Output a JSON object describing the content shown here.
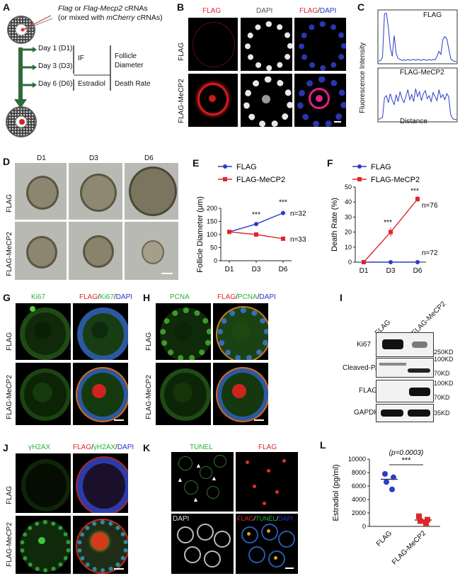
{
  "panels": {
    "A": "A",
    "B": "B",
    "C": "C",
    "D": "D",
    "E": "E",
    "F": "F",
    "G": "G",
    "H": "H",
    "I": "I",
    "J": "J",
    "K": "K",
    "L": "L"
  },
  "panelA": {
    "line1_a": "Flag",
    "line1_b": " or ",
    "line1_c": "Flag-Mecp2",
    "line1_d": " cRNAs",
    "line2_a": "(or mixed with ",
    "line2_b": "mCherry",
    "line2_c": " cRNAs)",
    "day1": "Day 1 (D1)",
    "day3": "Day 3 (D3)",
    "day6": "Day 6 (D6)",
    "if": "IF",
    "estradiol": "Estradiol",
    "follicle": "Follicle",
    "diameter": "Diameter",
    "death": "Death Rate"
  },
  "panelB": {
    "col1": "FLAG",
    "col2": "DAPI",
    "col3a": "FLAG",
    "col3b": "/",
    "col3c": "DAPI",
    "row1": "FLAG",
    "row2": "FLAG-MeCP2"
  },
  "panelC": {
    "ylabel": "Fluorescence Intensity",
    "xlabel": "Distance",
    "title1": "FLAG",
    "title2": "FLAG-MeCP2"
  },
  "panelD": {
    "cols": [
      "D1",
      "D3",
      "D6"
    ],
    "row1": "FLAG",
    "row2": "FLAG-MeCP2"
  },
  "panelG": {
    "col1": "Ki67",
    "col2a": "FLAG",
    "col2b": "/",
    "col2c": "Ki67",
    "col2d": "/",
    "col2e": "DAPI",
    "row1": "FLAG",
    "row2": "FLAG-MeCP2"
  },
  "panelH": {
    "col1": "PCNA",
    "col2a": "FLAG",
    "col2b": "/",
    "col2c": "PCNA",
    "col2d": "/",
    "col2e": "DAPI",
    "row1": "FLAG",
    "row2": "FLAG-MeCP2"
  },
  "panelI": {
    "col1": "FLAG",
    "col2": "FLAG-MeCP2",
    "rows": [
      "Ki67",
      "Cleaved-PARP",
      "FLAG",
      "GAPDH"
    ],
    "markers": [
      "250KD",
      "100KD",
      "70KD",
      "100KD",
      "70KD",
      "35KD"
    ]
  },
  "panelJ": {
    "col1": "γH2AX",
    "col2a": "FLAG",
    "col2b": "/",
    "col2c": "γH2AX",
    "col2d": "/",
    "col2e": "DAPI",
    "row1": "FLAG",
    "row2": "FLAG-MeCP2"
  },
  "panelK": {
    "tl": "TUNEL",
    "tr": "FLAG",
    "bl": "DAPI",
    "br_a": "FLAG",
    "br_b": "/",
    "br_c": "TUNEL",
    "br_d": "/",
    "br_e": "DAPI"
  },
  "colors": {
    "flag_series": "#2a3cc8",
    "mecp2_series": "#e0262a",
    "green": "#27b33a"
  },
  "chart_data": [
    {
      "type": "line",
      "panel": "C",
      "title": "FLAG",
      "ylabel": "Fluorescence Intensity",
      "xlabel": "Distance",
      "x": [
        0,
        1,
        2,
        3,
        4,
        5,
        6,
        7,
        8,
        9,
        10,
        11,
        12,
        13,
        14,
        15,
        16,
        17,
        18,
        19,
        20,
        21,
        22,
        23,
        24,
        25,
        26,
        27,
        28,
        29,
        30,
        31,
        32,
        33,
        34,
        35,
        36,
        37,
        38,
        39,
        40
      ],
      "values": [
        0.1,
        0.2,
        0.5,
        4.9,
        4.95,
        3.5,
        1.5,
        0.6,
        2.7,
        0.9,
        0.4,
        0.3,
        0.2,
        0.25,
        0.2,
        0.3,
        0.2,
        0.25,
        0.3,
        0.2,
        0.3,
        0.25,
        0.2,
        0.3,
        0.25,
        0.2,
        0.3,
        0.2,
        0.3,
        0.25,
        0.6,
        1.1,
        0.8,
        2.3,
        2.6,
        2.4,
        1.4,
        0.4,
        0.2,
        0.1,
        0.1
      ],
      "ylim": [
        0,
        5
      ]
    },
    {
      "type": "line",
      "panel": "C",
      "title": "FLAG-MeCP2",
      "ylabel": "Fluorescence Intensity",
      "xlabel": "Distance",
      "x": [
        0,
        1,
        2,
        3,
        4,
        5,
        6,
        7,
        8,
        9,
        10,
        11,
        12,
        13,
        14,
        15,
        16,
        17,
        18,
        19,
        20,
        21,
        22,
        23,
        24,
        25,
        26,
        27,
        28,
        29,
        30,
        31,
        32,
        33,
        34,
        35,
        36,
        37,
        38,
        39,
        40
      ],
      "values": [
        0.1,
        0.2,
        0.3,
        2.3,
        2.5,
        1.8,
        2.7,
        2.0,
        1.6,
        2.6,
        1.9,
        2.9,
        2.2,
        1.8,
        2.4,
        3.1,
        2.1,
        2.6,
        1.9,
        3.2,
        2.4,
        2.9,
        2.0,
        2.7,
        3.0,
        2.2,
        2.5,
        1.9,
        2.8,
        2.4,
        2.0,
        3.1,
        2.3,
        2.6,
        2.1,
        2.7,
        2.4,
        0.6,
        0.2,
        0.1,
        0.1
      ],
      "ylim": [
        0,
        5
      ]
    },
    {
      "type": "line",
      "panel": "E",
      "ylabel": "Follicle Diameter (μm)",
      "categories": [
        "D1",
        "D3",
        "D6"
      ],
      "ylim": [
        0,
        200
      ],
      "yticks": [
        0,
        50,
        100,
        150,
        200
      ],
      "series": [
        {
          "name": "FLAG",
          "values": [
            110,
            140,
            182
          ],
          "err": [
            3,
            4,
            8
          ]
        },
        {
          "name": "FLAG-MeCP2",
          "values": [
            110,
            100,
            84
          ],
          "err": [
            3,
            3,
            4
          ]
        }
      ],
      "annotations": [
        "***",
        "***",
        "n=32",
        "n=33"
      ]
    },
    {
      "type": "line",
      "panel": "F",
      "ylabel": "Death Rate (%)",
      "categories": [
        "D1",
        "D3",
        "D6"
      ],
      "ylim": [
        0,
        50
      ],
      "yticks": [
        0,
        10,
        20,
        30,
        40,
        50
      ],
      "series": [
        {
          "name": "FLAG",
          "values": [
            0,
            0,
            0
          ],
          "err": [
            0,
            0,
            0
          ]
        },
        {
          "name": "FLAG-MeCP2",
          "values": [
            0,
            20,
            42
          ],
          "err": [
            0,
            3,
            2
          ]
        }
      ],
      "annotations": [
        "***",
        "***",
        "n=76",
        "n=72"
      ]
    },
    {
      "type": "scatter",
      "panel": "L",
      "ylabel": "Estradiol (pg/ml)",
      "categories": [
        "FLAG",
        "FLAG-MeCP2"
      ],
      "ylim": [
        0,
        10000
      ],
      "yticks": [
        0,
        2000,
        4000,
        6000,
        8000,
        10000
      ],
      "series": [
        {
          "name": "FLAG",
          "points": [
            7800,
            7300,
            6600,
            5500
          ],
          "mean": 7000
        },
        {
          "name": "FLAG-MeCP2",
          "points": [
            1500,
            1000,
            800,
            500
          ],
          "mean": 950
        }
      ],
      "annotations": [
        "(p=0.0003)",
        "***"
      ]
    }
  ]
}
